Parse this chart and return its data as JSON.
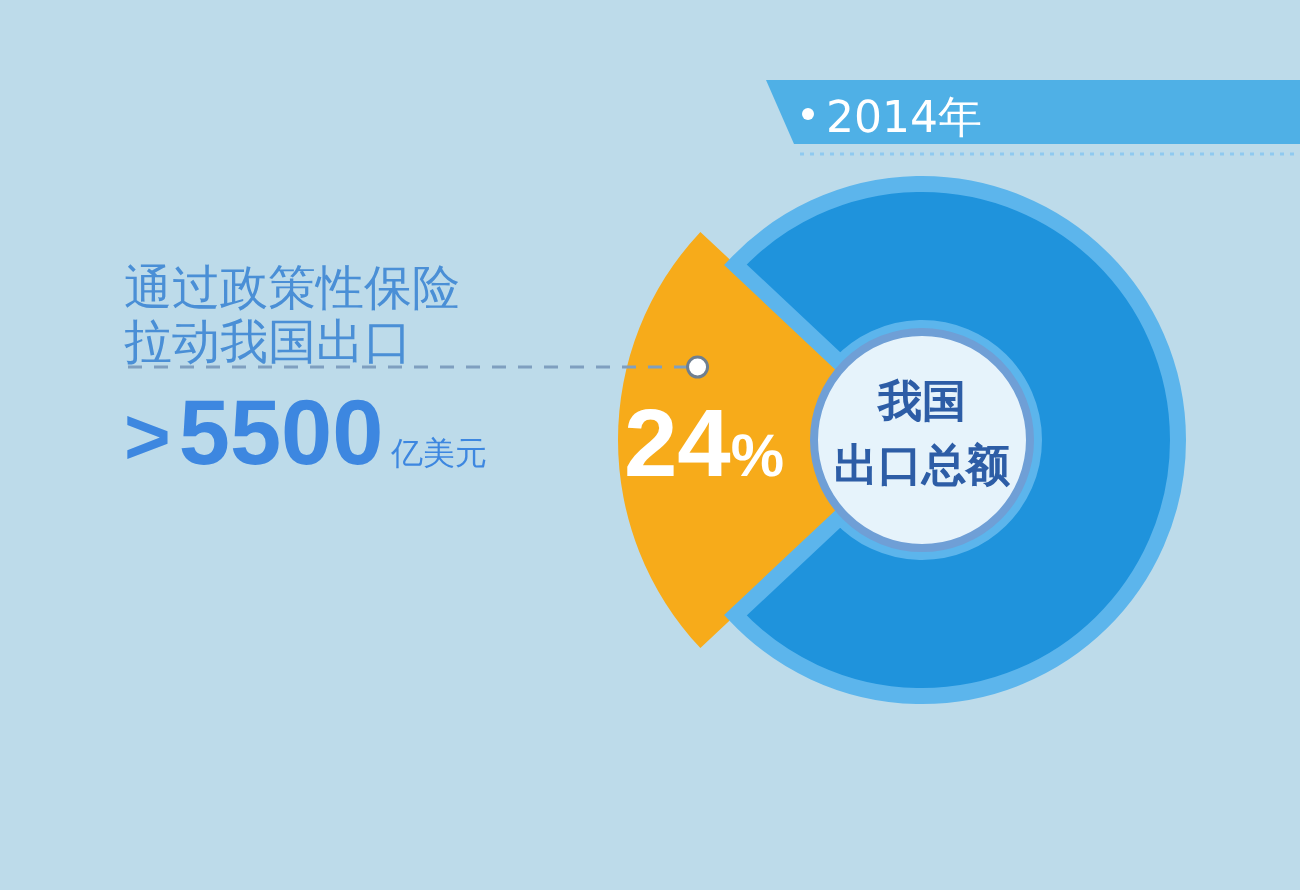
{
  "chart_data": {
    "type": "donut",
    "title": "2014年",
    "categories": [
      "通过政策性保险拉动我国出口",
      null
    ],
    "values": [
      24,
      76
    ],
    "colors": [
      "#f7ab1a",
      "#1f93dc"
    ],
    "value_labels": [
      "24%",
      null
    ],
    "annotations": [
      ">5500亿美元",
      "我国出口总额"
    ]
  }
}
